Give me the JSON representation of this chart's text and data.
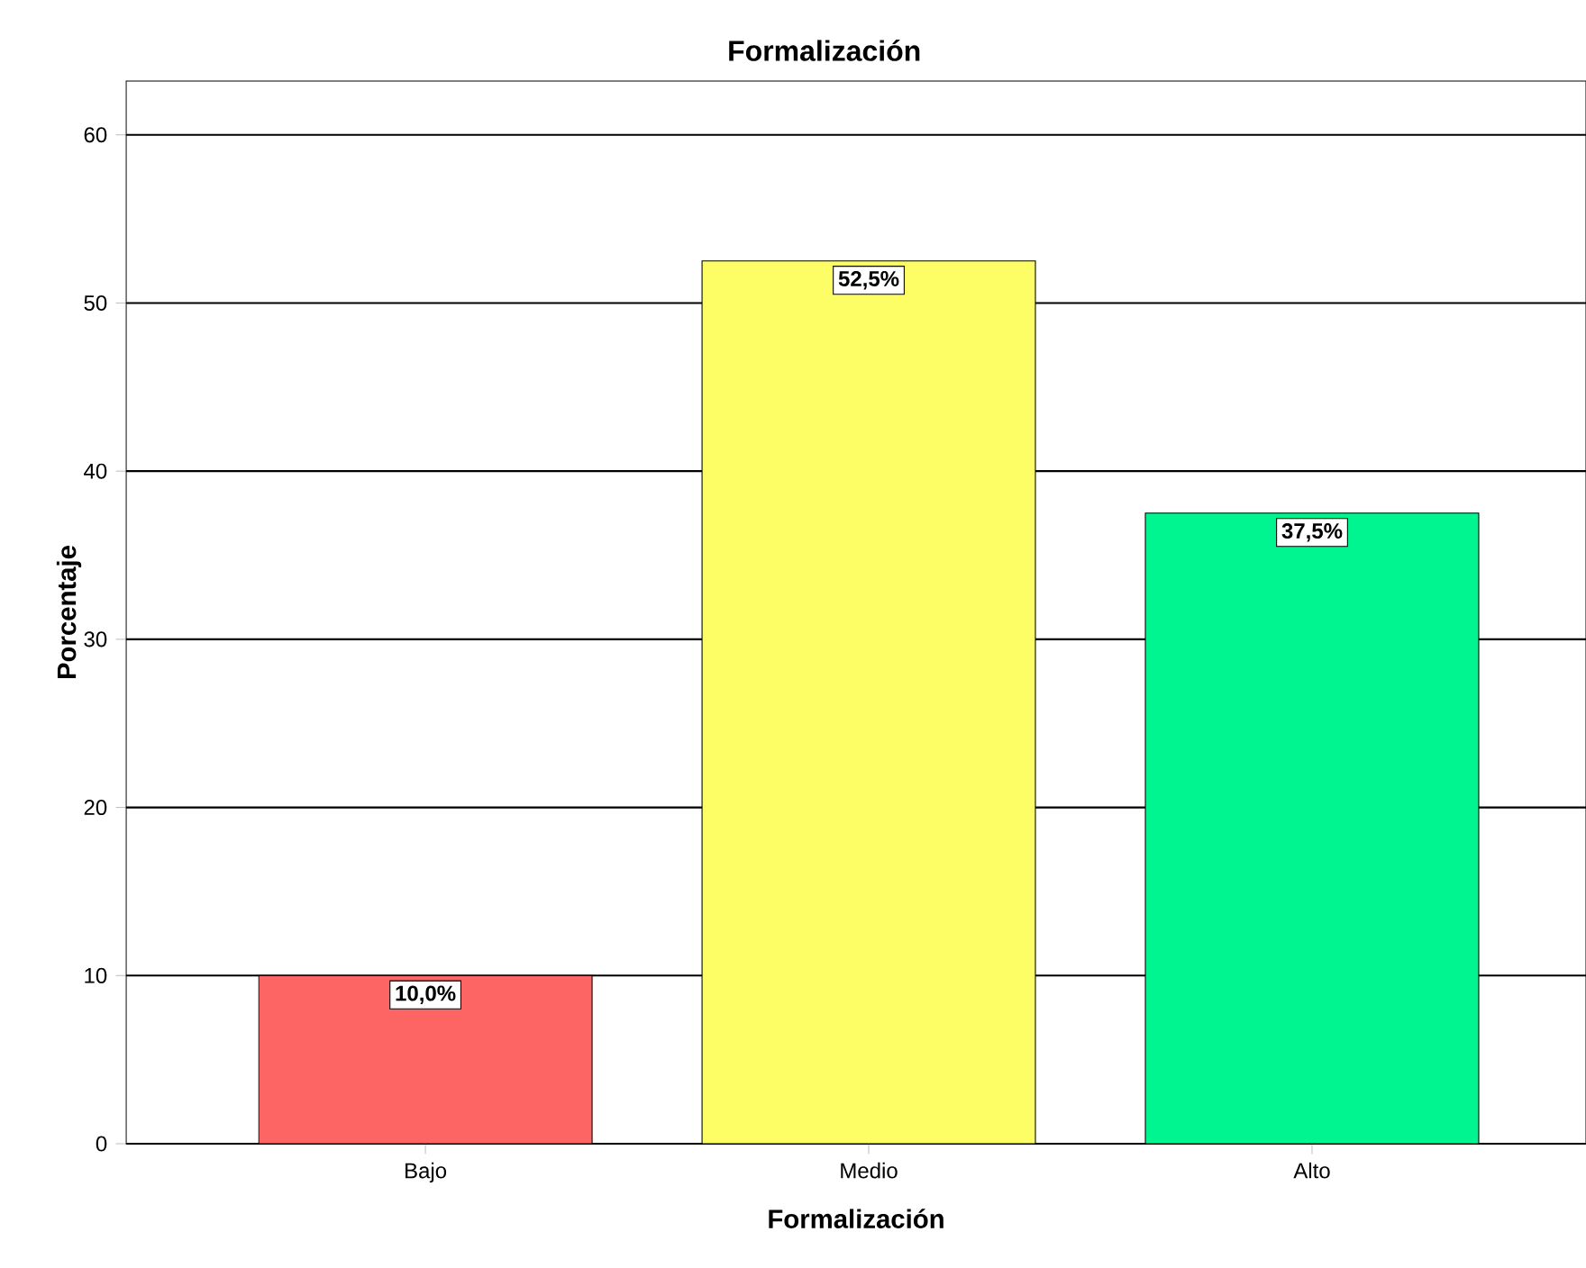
{
  "chart_data": {
    "type": "bar",
    "title": "Formalización",
    "xlabel": "Formalización",
    "ylabel": "Porcentaje",
    "categories": [
      "Bajo",
      "Medio",
      "Alto"
    ],
    "values": [
      10.0,
      52.5,
      37.5
    ],
    "colors": [
      "#fd6565",
      "#fdfd65",
      "#00f591"
    ],
    "value_labels": [
      "10,0%",
      "52,5%",
      "37,5%"
    ],
    "ylim": [
      0,
      63.2
    ],
    "yticks": [
      0,
      10,
      20,
      30,
      40,
      50,
      60
    ],
    "grid": "y"
  }
}
